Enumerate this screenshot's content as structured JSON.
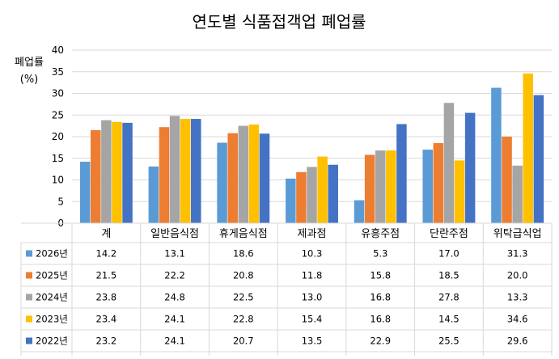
{
  "chart_data": {
    "type": "bar",
    "title": "연도별 식품접객업 폐업률",
    "ylabel": "폐업률",
    "yunit": "(%)",
    "ylim": [
      0,
      40
    ],
    "yticks": [
      0,
      5,
      10,
      15,
      20,
      25,
      30,
      35,
      40
    ],
    "grid": true,
    "legend": "data-table-left",
    "categories": [
      "계",
      "일반음식점",
      "휴게음식점",
      "제과점",
      "유흥주점",
      "단란주점",
      "위탁급식업"
    ],
    "series": [
      {
        "name": "2026년",
        "color": "#5b9bd5",
        "values": [
          14.2,
          13.1,
          18.6,
          10.3,
          5.3,
          17.0,
          31.3
        ]
      },
      {
        "name": "2025년",
        "color": "#ed7d31",
        "values": [
          21.5,
          22.2,
          20.8,
          11.8,
          15.8,
          18.5,
          20.0
        ]
      },
      {
        "name": "2024년",
        "color": "#a5a5a5",
        "values": [
          23.8,
          24.8,
          22.5,
          13.0,
          16.8,
          27.8,
          13.3
        ]
      },
      {
        "name": "2023년",
        "color": "#ffc000",
        "values": [
          23.4,
          24.1,
          22.8,
          15.4,
          16.8,
          14.5,
          34.6
        ]
      },
      {
        "name": "2022년",
        "color": "#4472c4",
        "values": [
          23.2,
          24.1,
          20.7,
          13.5,
          22.9,
          25.5,
          29.6
        ]
      }
    ]
  }
}
